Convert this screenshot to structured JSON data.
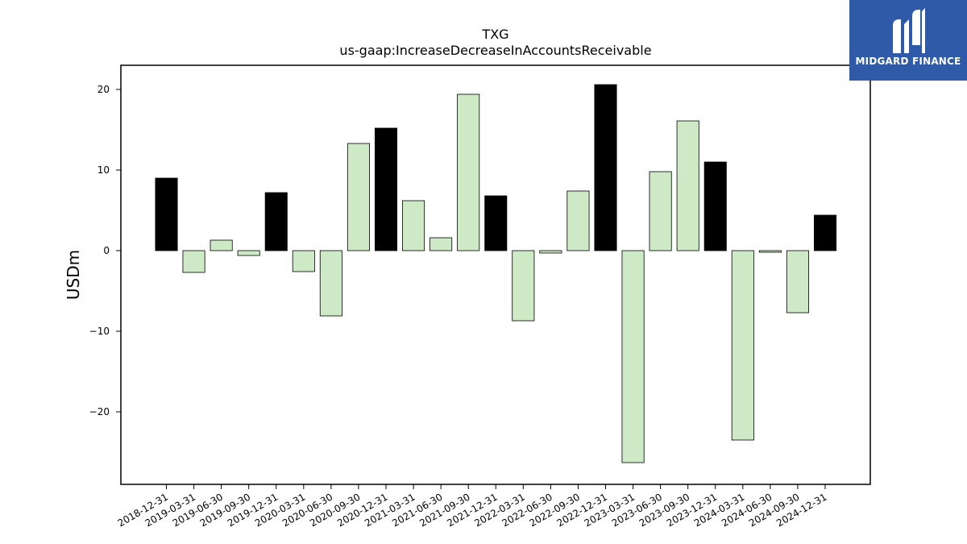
{
  "brand": {
    "name": "MIDGARD FINANCE",
    "background": "#2f5aa8",
    "text_color": "#ffffff"
  },
  "chart_data": {
    "type": "bar",
    "title": "TXG",
    "subtitle": "us-gaap:IncreaseDecreaseInAccountsReceivable",
    "xlabel": "",
    "ylabel": "USDm",
    "ylim": [
      -29,
      23
    ],
    "yticks": [
      20,
      10,
      0,
      -10,
      -20
    ],
    "ytick_labels": [
      "20",
      "10",
      "0",
      "−10",
      "−20"
    ],
    "grid": false,
    "colors": {
      "annual": "#000000",
      "quarterly": "#cde9c5",
      "edge": "#000000"
    },
    "categories": [
      "2018-12-31",
      "2019-03-31",
      "2019-06-30",
      "2019-09-30",
      "2019-12-31",
      "2020-03-31",
      "2020-06-30",
      "2020-09-30",
      "2020-12-31",
      "2021-03-31",
      "2021-06-30",
      "2021-09-30",
      "2021-12-31",
      "2022-03-31",
      "2022-06-30",
      "2022-09-30",
      "2022-12-31",
      "2023-03-31",
      "2023-06-30",
      "2023-09-30",
      "2023-12-31",
      "2024-03-31",
      "2024-06-30",
      "2024-09-30",
      "2024-12-31"
    ],
    "values": [
      9.0,
      -2.7,
      1.3,
      -0.6,
      7.2,
      -2.6,
      -8.1,
      13.3,
      15.2,
      6.2,
      1.6,
      19.4,
      6.8,
      -8.7,
      -0.3,
      7.4,
      20.6,
      -26.3,
      9.8,
      16.1,
      11.0,
      -23.5,
      -0.2,
      -7.7,
      4.4
    ],
    "is_annual": [
      true,
      false,
      false,
      false,
      true,
      false,
      false,
      false,
      true,
      false,
      false,
      false,
      true,
      false,
      false,
      false,
      true,
      false,
      false,
      false,
      true,
      false,
      false,
      false,
      true
    ]
  }
}
